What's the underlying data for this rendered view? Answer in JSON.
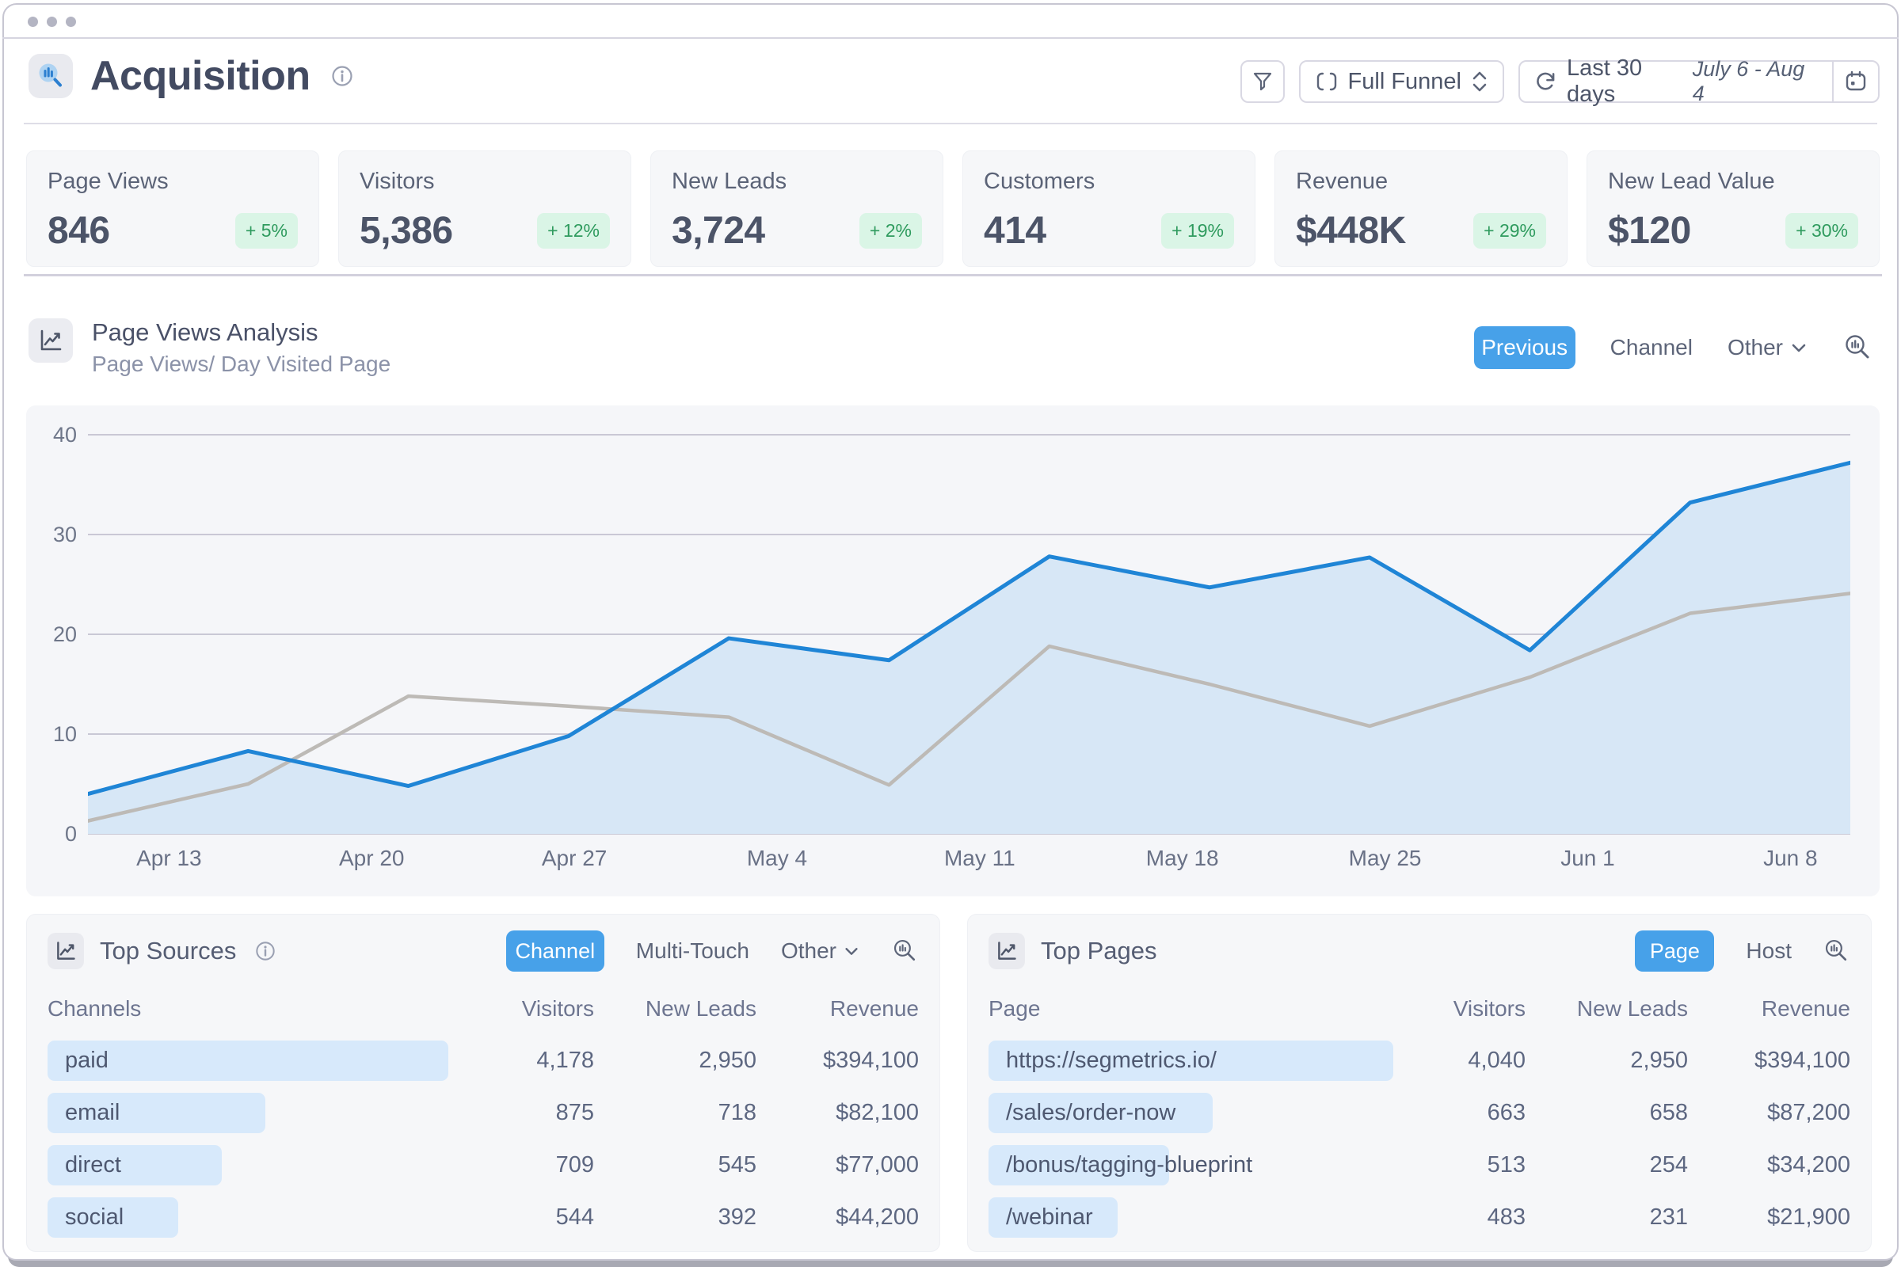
{
  "header": {
    "title": "Acquisition"
  },
  "toolbar": {
    "funnel_select": {
      "label": "Full Funnel"
    },
    "date_range": {
      "preset": "Last 30 days",
      "range": "July 6 - Aug 4"
    }
  },
  "kpis": [
    {
      "label": "Page Views",
      "value": "846",
      "delta": "+ 5%"
    },
    {
      "label": "Visitors",
      "value": "5,386",
      "delta": "+ 12%"
    },
    {
      "label": "New Leads",
      "value": "3,724",
      "delta": "+ 2%"
    },
    {
      "label": "Customers",
      "value": "414",
      "delta": "+ 19%"
    },
    {
      "label": "Revenue",
      "value": "$448K",
      "delta": "+ 29%"
    },
    {
      "label": "New Lead Value",
      "value": "$120",
      "delta": "+ 30%"
    }
  ],
  "chart_section": {
    "title": "Page Views Analysis",
    "subtitle": "Page Views/ Day Visited Page",
    "controls": {
      "previous": "Previous",
      "channel": "Channel",
      "other": "Other"
    }
  },
  "chart_data": {
    "type": "area",
    "title": "Page Views Analysis",
    "x_tick_labels": [
      "Apr 13",
      "Apr 20",
      "Apr 27",
      "May 4",
      "May 11",
      "May 18",
      "May 25",
      "Jun 1",
      "Jun 8"
    ],
    "x_tick_start_frac": 0.046,
    "x_tick_step_frac": 0.115,
    "y_ticks": [
      0,
      10,
      20,
      30,
      40
    ],
    "ylim": [
      0,
      40
    ],
    "grid": "horizontal",
    "legend": "none",
    "series": [
      {
        "name": "page-views-current",
        "color": "#1f85d6",
        "fill": "#d7e7f6",
        "values": [
          4,
          8.3,
          4.8,
          9.8,
          19.6,
          17.4,
          27.8,
          24.7,
          27.7,
          18.4,
          33.2,
          37.2
        ]
      },
      {
        "name": "page-views-previous",
        "color": "#bdbab6",
        "fill": null,
        "values": [
          1.3,
          5,
          13.8,
          12.8,
          11.7,
          4.9,
          18.8,
          15,
          10.8,
          15.7,
          22.1,
          24.1
        ]
      }
    ]
  },
  "panels": {
    "sources": {
      "title": "Top Sources",
      "buttons": {
        "active": "Channel",
        "secondary": "Multi-Touch",
        "dropdown": "Other"
      },
      "columns": [
        "Channels",
        "Visitors",
        "New Leads",
        "Revenue"
      ],
      "rows": [
        {
          "label": "paid",
          "visitors": "4,178",
          "new_leads": "2,950",
          "revenue": "$394,100",
          "bar_pct": 46
        },
        {
          "label": "email",
          "visitors": "875",
          "new_leads": "718",
          "revenue": "$82,100",
          "bar_pct": 25
        },
        {
          "label": "direct",
          "visitors": "709",
          "new_leads": "545",
          "revenue": "$77,000",
          "bar_pct": 20
        },
        {
          "label": "social",
          "visitors": "544",
          "new_leads": "392",
          "revenue": "$44,200",
          "bar_pct": 15
        }
      ]
    },
    "pages": {
      "title": "Top Pages",
      "buttons": {
        "active": "Page",
        "secondary": "Host"
      },
      "columns": [
        "Page",
        "Visitors",
        "New Leads",
        "Revenue"
      ],
      "rows": [
        {
          "label": "https://segmetrics.io/",
          "visitors": "4,040",
          "new_leads": "2,950",
          "revenue": "$394,100",
          "bar_pct": 47
        },
        {
          "label": "/sales/order-now",
          "visitors": "663",
          "new_leads": "658",
          "revenue": "$87,200",
          "bar_pct": 26
        },
        {
          "label": "/bonus/tagging-blueprint",
          "visitors": "513",
          "new_leads": "254",
          "revenue": "$34,200",
          "bar_pct": 21
        },
        {
          "label": "/webinar",
          "visitors": "483",
          "new_leads": "231",
          "revenue": "$21,900",
          "bar_pct": 15
        }
      ]
    }
  },
  "icons": {
    "acquisition": "magnifier-over-bars",
    "info": "info-circle",
    "filter": "funnel",
    "funnel_scope": "corner-brackets",
    "select_arrows": "chevron-up-down",
    "refresh": "circular-arrows",
    "calendar": "calendar",
    "section_chart": "line-chart",
    "zoom": "magnifier-chart",
    "chevron": "chevron-down"
  },
  "colors": {
    "accent_blue": "#47a1e9",
    "line_blue": "#1f85d6",
    "area_fill": "#d7e7f6",
    "line_gray": "#bdbab6",
    "badge_bg": "#daf5e6",
    "badge_text": "#2f9b5e",
    "row_bar": "#d7e9fb",
    "gridline": "#c9c8d5"
  }
}
